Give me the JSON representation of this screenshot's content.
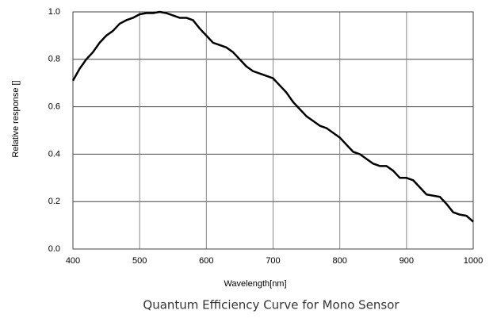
{
  "chart_data": {
    "type": "line",
    "title": "Quantum Efficiency Curve for Mono Sensor",
    "xlabel": "Wavelength[nm]",
    "ylabel": "Relative response []",
    "x": [
      400,
      410,
      420,
      430,
      440,
      450,
      460,
      470,
      480,
      490,
      500,
      510,
      520,
      530,
      540,
      550,
      560,
      570,
      580,
      590,
      600,
      610,
      620,
      630,
      640,
      650,
      660,
      670,
      680,
      690,
      700,
      710,
      720,
      730,
      740,
      750,
      760,
      770,
      780,
      790,
      800,
      810,
      820,
      830,
      840,
      850,
      860,
      870,
      880,
      890,
      900,
      910,
      920,
      930,
      940,
      950,
      960,
      970,
      980,
      990,
      1000
    ],
    "series": [
      {
        "name": "Mono",
        "color": "#000000",
        "values": [
          0.71,
          0.76,
          0.8,
          0.83,
          0.87,
          0.9,
          0.92,
          0.95,
          0.965,
          0.975,
          0.99,
          0.995,
          0.995,
          1.0,
          0.995,
          0.985,
          0.975,
          0.975,
          0.965,
          0.93,
          0.9,
          0.87,
          0.86,
          0.85,
          0.83,
          0.8,
          0.77,
          0.75,
          0.74,
          0.73,
          0.72,
          0.69,
          0.66,
          0.62,
          0.59,
          0.56,
          0.54,
          0.52,
          0.51,
          0.49,
          0.47,
          0.44,
          0.41,
          0.4,
          0.38,
          0.36,
          0.35,
          0.35,
          0.33,
          0.3,
          0.3,
          0.29,
          0.26,
          0.23,
          0.225,
          0.22,
          0.19,
          0.155,
          0.145,
          0.14,
          0.115
        ]
      }
    ],
    "xlim": [
      400,
      1000
    ],
    "xticks": [
      400,
      500,
      600,
      700,
      800,
      900,
      1000
    ],
    "ylim": [
      0,
      1
    ],
    "yticks": [
      {
        "value": 0,
        "label": "0.0"
      },
      0.2,
      0.4,
      0.6,
      0.8,
      {
        "value": 1,
        "label": "1.0"
      }
    ],
    "grid": true
  }
}
